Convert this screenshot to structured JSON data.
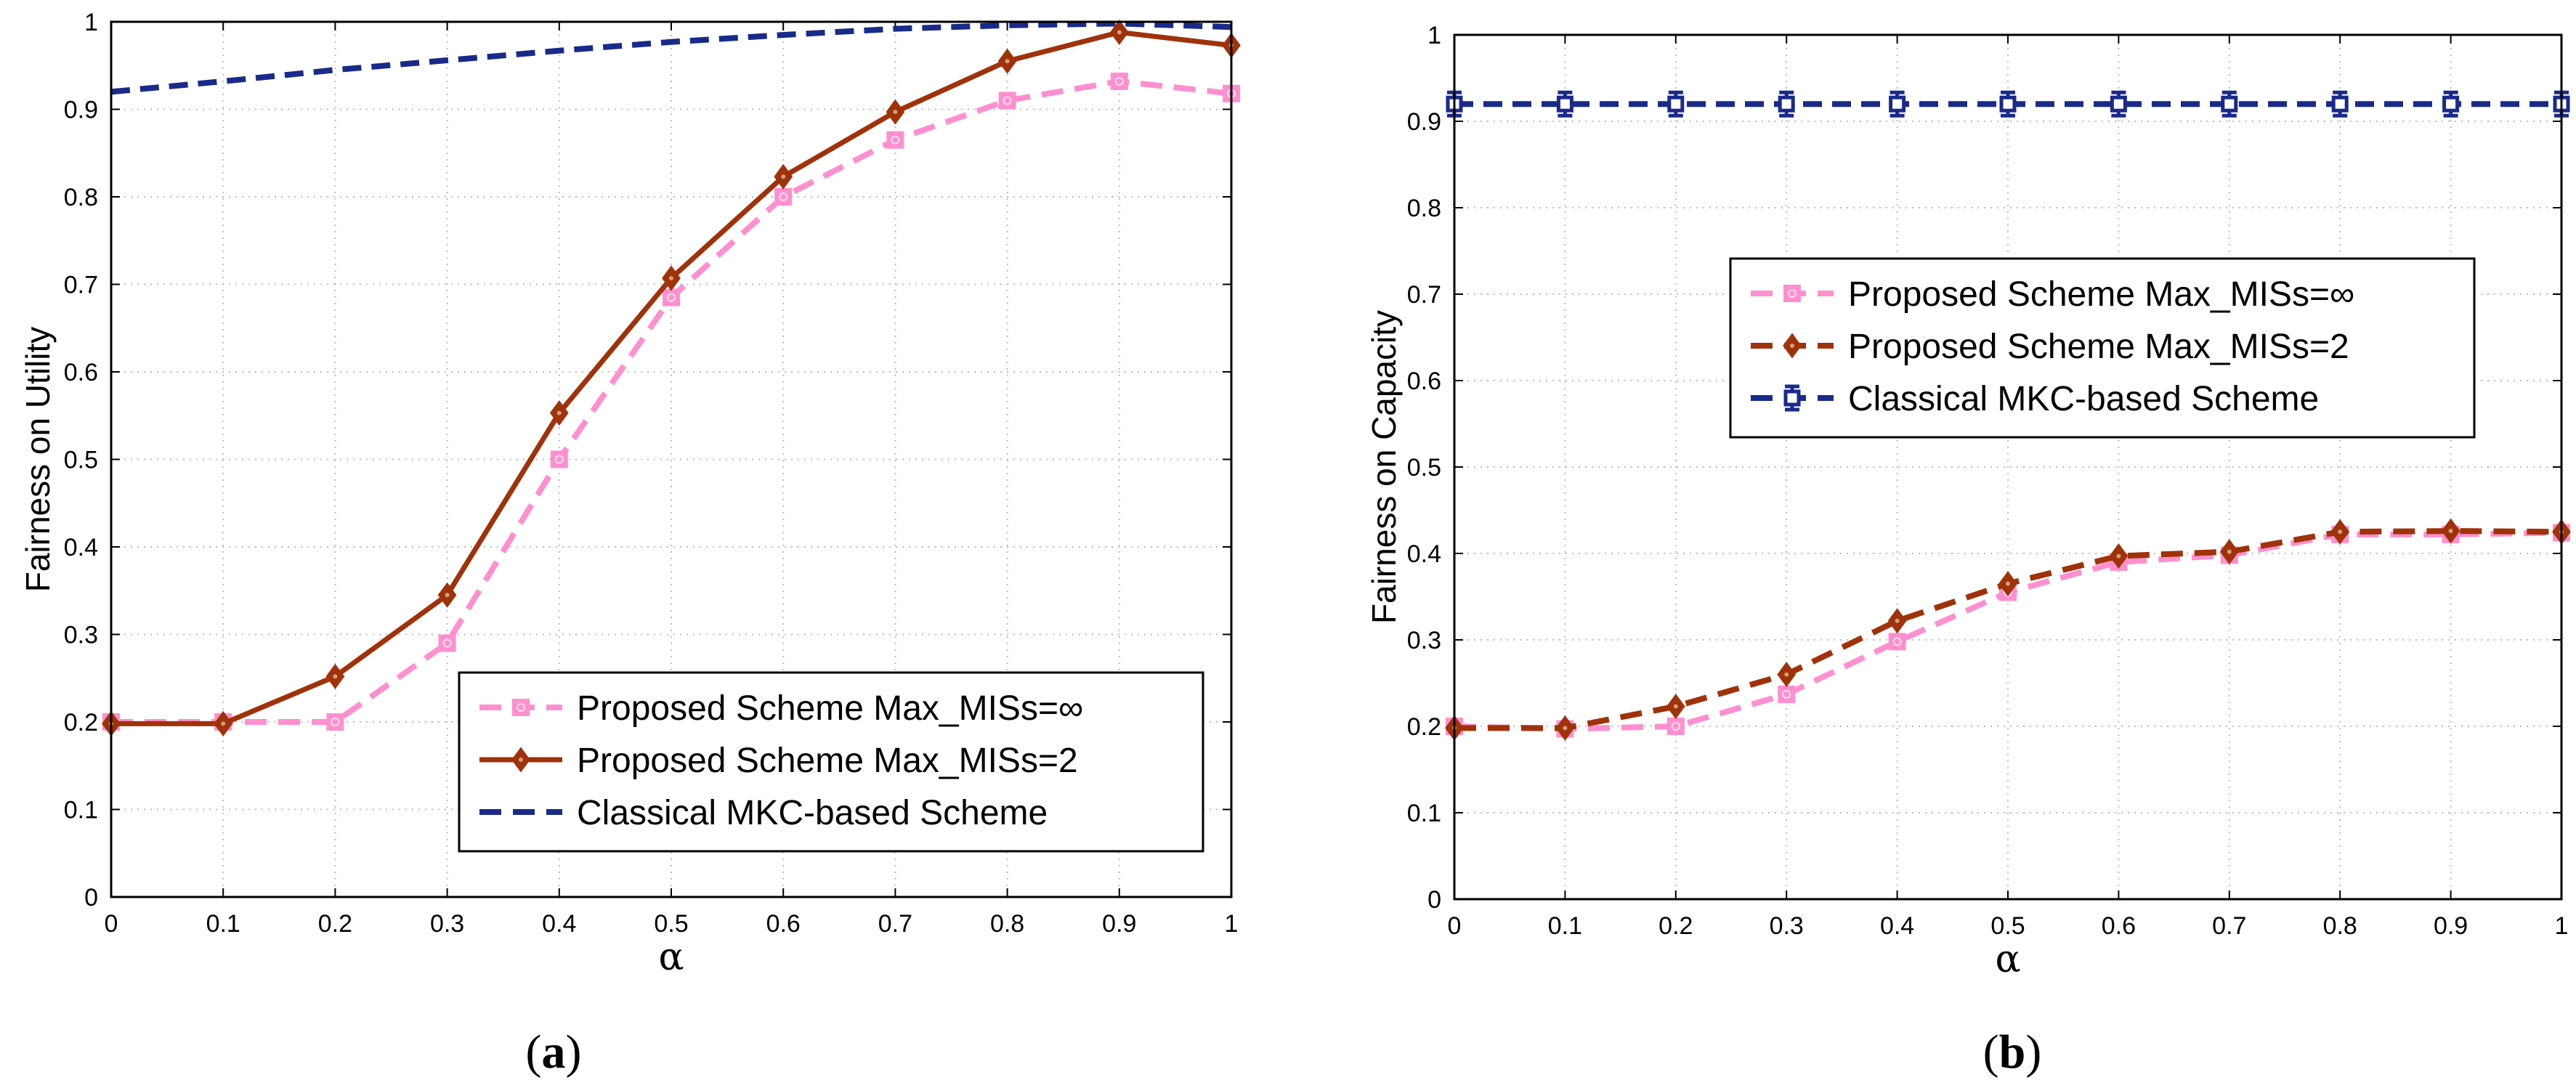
{
  "captions": [
    {
      "open": "(",
      "letter": "a",
      "close": ")"
    },
    {
      "open": "(",
      "letter": "b",
      "close": ")"
    }
  ],
  "colors": {
    "pink": "#ff8fcf",
    "brown": "#a0320a",
    "navy": "#1a2a8a",
    "grid": "#bdbdbd"
  },
  "chart_data": [
    {
      "type": "line",
      "xlabel": "α",
      "ylabel": "Fairness on Utility",
      "xlim": [
        0,
        1
      ],
      "ylim": [
        0,
        1
      ],
      "xticks": [
        "0",
        "0.1",
        "0.2",
        "0.3",
        "0.4",
        "0.5",
        "0.6",
        "0.7",
        "0.8",
        "0.9",
        "1"
      ],
      "yticks": [
        "0",
        "0.1",
        "0.2",
        "0.3",
        "0.4",
        "0.5",
        "0.6",
        "0.7",
        "0.8",
        "0.9",
        "1"
      ],
      "grid": true,
      "legend_position": "bottom-right",
      "x": [
        0,
        0.1,
        0.2,
        0.3,
        0.4,
        0.5,
        0.6,
        0.7,
        0.8,
        0.9,
        1.0
      ],
      "series": [
        {
          "name": "Proposed Scheme Max_MISs=∞",
          "values": [
            0.2,
            0.2,
            0.2,
            0.29,
            0.5,
            0.685,
            0.8,
            0.865,
            0.91,
            0.932,
            0.918
          ],
          "color": "#ff8fcf",
          "line": "dashed",
          "marker": "square-circle"
        },
        {
          "name": "Proposed Scheme Max_MISs=2",
          "values": [
            0.198,
            0.198,
            0.252,
            0.345,
            0.553,
            0.707,
            0.823,
            0.897,
            0.955,
            0.988,
            0.973
          ],
          "color": "#a0320a",
          "line": "solid",
          "marker": "diamond"
        },
        {
          "name": "Classical MKC-based Scheme",
          "values": [
            0.92,
            0.932,
            0.945,
            0.956,
            0.967,
            0.977,
            0.985,
            0.992,
            0.996,
            0.998,
            0.994
          ],
          "color": "#1a2a8a",
          "line": "dashed",
          "marker": "none"
        }
      ]
    },
    {
      "type": "line",
      "xlabel": "α",
      "ylabel": "Fairness on Capacity",
      "xlim": [
        0,
        1
      ],
      "ylim": [
        0,
        1
      ],
      "xticks": [
        "0",
        "0.1",
        "0.2",
        "0.3",
        "0.4",
        "0.5",
        "0.6",
        "0.7",
        "0.8",
        "0.9",
        "1"
      ],
      "yticks": [
        "0",
        "0.1",
        "0.2",
        "0.3",
        "0.4",
        "0.5",
        "0.6",
        "0.7",
        "0.8",
        "0.9",
        "1"
      ],
      "grid": true,
      "legend_position": "upper-center",
      "x": [
        0,
        0.1,
        0.2,
        0.3,
        0.4,
        0.5,
        0.6,
        0.7,
        0.8,
        0.9,
        1.0
      ],
      "series": [
        {
          "name": "Proposed Scheme Max_MISs=∞",
          "values": [
            0.2,
            0.197,
            0.2,
            0.237,
            0.298,
            0.355,
            0.39,
            0.398,
            0.422,
            0.422,
            0.424
          ],
          "color": "#ff8fcf",
          "line": "dashed",
          "marker": "square-circle"
        },
        {
          "name": "Proposed Scheme Max_MISs=2",
          "values": [
            0.198,
            0.198,
            0.223,
            0.26,
            0.322,
            0.365,
            0.397,
            0.402,
            0.425,
            0.426,
            0.425
          ],
          "color": "#a0320a",
          "line": "dashed",
          "marker": "diamond"
        },
        {
          "name": "Classical MKC-based Scheme",
          "values": [
            0.92,
            0.92,
            0.92,
            0.92,
            0.92,
            0.92,
            0.92,
            0.92,
            0.92,
            0.92,
            0.92
          ],
          "color": "#1a2a8a",
          "line": "dashed",
          "marker": "square-error"
        }
      ]
    }
  ]
}
